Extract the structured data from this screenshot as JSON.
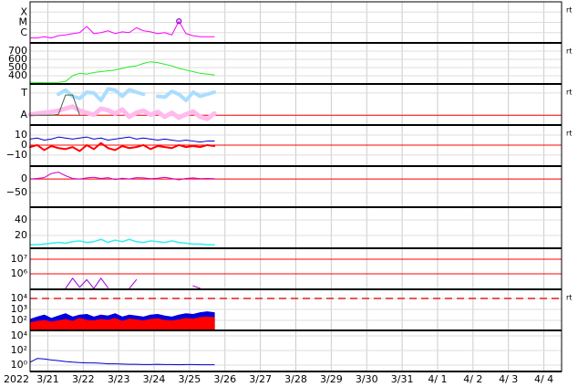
{
  "x_axis": {
    "year": "2022",
    "xlim": [
      0.5,
      15.5
    ],
    "xticks": [
      {
        "value": 1,
        "label": "3/21"
      },
      {
        "value": 2,
        "label": "3/22"
      },
      {
        "value": 3,
        "label": "3/23"
      },
      {
        "value": 4,
        "label": "3/24"
      },
      {
        "value": 5,
        "label": "3/25"
      },
      {
        "value": 6,
        "label": "3/26"
      },
      {
        "value": 7,
        "label": "3/27"
      },
      {
        "value": 8,
        "label": "3/28"
      },
      {
        "value": 9,
        "label": "3/29"
      },
      {
        "value": 10,
        "label": "3/30"
      },
      {
        "value": 11,
        "label": "3/31"
      },
      {
        "value": 12,
        "label": "4/ 1"
      },
      {
        "value": 13,
        "label": "4/ 2"
      },
      {
        "value": 14,
        "label": "4/ 3"
      },
      {
        "value": 15,
        "label": "4/ 4"
      }
    ]
  },
  "chart_data": [
    {
      "type": "line",
      "log": true,
      "ylim": [
        1e-07,
        0.001
      ],
      "side_label": "rt",
      "yticks": [
        {
          "value": 0.0001,
          "label": "X"
        },
        {
          "value": 1e-05,
          "label": "M"
        },
        {
          "value": 1e-06,
          "label": "C"
        }
      ],
      "x": [
        0.5,
        0.7,
        0.9,
        1.1,
        1.3,
        1.5,
        1.7,
        1.9,
        2.1,
        2.3,
        2.5,
        2.7,
        2.9,
        3.1,
        3.3,
        3.5,
        3.7,
        3.9,
        4.1,
        4.3,
        4.5,
        4.7,
        4.9,
        5.1,
        5.3,
        5.5,
        5.7
      ],
      "series": [
        {
          "color": "#ff00ff",
          "values": [
            3e-07,
            3e-07,
            4e-07,
            3e-07,
            5e-07,
            6e-07,
            8e-07,
            1e-06,
            4e-06,
            8e-07,
            1e-06,
            1.5e-06,
            8e-07,
            1.2e-06,
            1e-06,
            3e-06,
            1.5e-06,
            1.2e-06,
            8e-07,
            1e-06,
            6e-07,
            1.3e-05,
            8e-07,
            5e-07,
            4e-07,
            4e-07,
            4e-07
          ]
        }
      ],
      "markers": {
        "color": "#8800cc",
        "x": [
          4.7
        ],
        "values": [
          1.3e-05
        ]
      }
    },
    {
      "type": "line",
      "log": false,
      "ylim": [
        300,
        800
      ],
      "side_label": "rt",
      "yticks": [
        700,
        600,
        500,
        400
      ],
      "x": [
        0.5,
        0.7,
        0.9,
        1.1,
        1.3,
        1.5,
        1.7,
        1.9,
        2.1,
        2.3,
        2.5,
        2.7,
        2.9,
        3.1,
        3.3,
        3.5,
        3.7,
        3.9,
        4.1,
        4.3,
        4.5,
        4.7,
        4.9,
        5.1,
        5.3,
        5.5,
        5.7
      ],
      "series": [
        {
          "color": "#22ee22",
          "values": [
            320,
            318,
            315,
            318,
            320,
            330,
            400,
            430,
            420,
            440,
            450,
            460,
            470,
            490,
            510,
            520,
            550,
            570,
            560,
            540,
            520,
            490,
            470,
            450,
            430,
            420,
            410
          ]
        }
      ]
    },
    {
      "type": "line",
      "log": false,
      "ylim": [
        0,
        10
      ],
      "side_label": "rt",
      "yticks": [
        {
          "value": 7.8,
          "label": "T"
        },
        {
          "value": 2.4,
          "label": "A"
        }
      ],
      "ref_lines": [
        {
          "value": 2.4,
          "color": "#ff0000",
          "dashed": false
        }
      ],
      "x": [
        0.5,
        0.7,
        0.9,
        1.1,
        1.3,
        1.5,
        1.7,
        1.9,
        2.1,
        2.3,
        2.5,
        2.7,
        2.9,
        3.1,
        3.3,
        3.5,
        3.7,
        3.9,
        4.1,
        4.3,
        4.5,
        4.7,
        4.9,
        5.1,
        5.3,
        5.5,
        5.7
      ],
      "series": [
        {
          "color": "#ffbbee",
          "width": 5,
          "values": [
            2.5,
            2.8,
            3,
            3.2,
            3.5,
            4,
            4.5,
            3.5,
            3,
            2.5,
            4,
            3.6,
            2.8,
            3.8,
            2,
            3,
            3.5,
            2.5,
            3.2,
            2,
            3,
            1.8,
            2.6,
            3.3,
            2,
            1.5,
            2.8
          ]
        },
        {
          "color": "#aaddff",
          "width": 4,
          "values": [
            null,
            null,
            null,
            null,
            7.5,
            8.5,
            7,
            6.5,
            8,
            7.8,
            6,
            8.8,
            8.5,
            7,
            8.6,
            8,
            7.5,
            null,
            7,
            6.8,
            8.2,
            7.5,
            6,
            8,
            7,
            7.5,
            8
          ]
        },
        {
          "color": "#446644",
          "width": 1,
          "values": [
            2.4,
            2.4,
            2.4,
            2.4,
            2.6,
            7.3,
            7.3,
            2.4,
            null,
            null,
            null,
            null,
            null,
            null,
            null,
            null,
            null,
            null,
            null,
            null,
            null,
            null,
            null,
            null,
            null,
            null,
            null
          ]
        }
      ]
    },
    {
      "type": "line",
      "log": false,
      "ylim": [
        -21,
        20
      ],
      "side_label": "rt",
      "yticks": [
        10,
        0,
        {
          "value": -10,
          "label": "−10"
        }
      ],
      "ref_lines": [
        {
          "value": 0,
          "color": "#ff0000",
          "dashed": false
        }
      ],
      "x": [
        0.5,
        0.7,
        0.9,
        1.1,
        1.3,
        1.5,
        1.7,
        1.9,
        2.1,
        2.3,
        2.5,
        2.7,
        2.9,
        3.1,
        3.3,
        3.5,
        3.7,
        3.9,
        4.1,
        4.3,
        4.5,
        4.7,
        4.9,
        5.1,
        5.3,
        5.5,
        5.7
      ],
      "series": [
        {
          "color": "#0000cc",
          "width": 1,
          "values": [
            6,
            7,
            5,
            6,
            8,
            7,
            6,
            7,
            8,
            6,
            7,
            5,
            6,
            7,
            8,
            6,
            7,
            6,
            5,
            6,
            5,
            4,
            5,
            4,
            3,
            4,
            4
          ]
        },
        {
          "color": "#ff0000",
          "width": 2,
          "values": [
            -2,
            0,
            -5,
            -1,
            -3,
            -4,
            -2,
            -6,
            0,
            -4,
            2,
            -3,
            -5,
            -1,
            -3,
            -2,
            0,
            -4,
            -1,
            -2,
            -3,
            0,
            -2,
            -1,
            -2,
            0,
            -1
          ]
        }
      ]
    },
    {
      "type": "line",
      "log": false,
      "ylim": [
        -103,
        47
      ],
      "yticks": [
        0,
        {
          "value": -50,
          "label": "−50"
        }
      ],
      "ref_lines": [
        {
          "value": 0,
          "color": "#ff0000",
          "dashed": false
        }
      ],
      "x": [
        0.5,
        0.7,
        0.9,
        1.1,
        1.3,
        1.5,
        1.7,
        1.9,
        2.1,
        2.3,
        2.5,
        2.7,
        2.9,
        3.1,
        3.3,
        3.5,
        3.7,
        3.9,
        4.1,
        4.3,
        4.5,
        4.7,
        4.9,
        5.1,
        5.3,
        5.5,
        5.7
      ],
      "series": [
        {
          "color": "#cc00cc",
          "width": 1,
          "values": [
            0,
            2,
            5,
            20,
            25,
            12,
            2,
            0,
            4,
            6,
            2,
            5,
            -2,
            3,
            0,
            5,
            4,
            1,
            3,
            6,
            2,
            -3,
            2,
            4,
            1,
            2,
            1
          ]
        }
      ]
    },
    {
      "type": "line",
      "log": false,
      "ylim": [
        3.5,
        56.5
      ],
      "yticks": [
        40,
        20
      ],
      "x": [
        0.5,
        0.7,
        0.9,
        1.1,
        1.3,
        1.5,
        1.7,
        1.9,
        2.1,
        2.3,
        2.5,
        2.7,
        2.9,
        3.1,
        3.3,
        3.5,
        3.7,
        3.9,
        4.1,
        4.3,
        4.5,
        4.7,
        4.9,
        5.1,
        5.3,
        5.5,
        5.7
      ],
      "series": [
        {
          "color": "#33eeee",
          "width": 1.5,
          "values": [
            8,
            8,
            9,
            10,
            11,
            10,
            12,
            13,
            11,
            12,
            15,
            11,
            14,
            12,
            15,
            12,
            11,
            13,
            12,
            11,
            13,
            11,
            10,
            9,
            9,
            8,
            8
          ]
        }
      ]
    },
    {
      "type": "line",
      "log": true,
      "ylim": [
        87000,
        56000000
      ],
      "yticks": [
        {
          "value": 10000000,
          "label": "10⁷"
        },
        {
          "value": 1000000,
          "label": "10⁶"
        }
      ],
      "ref_lines": [
        {
          "value": 10000000,
          "color": "#ff0000",
          "dashed": false
        },
        {
          "value": 1000000,
          "color": "#ff0000",
          "dashed": false
        }
      ],
      "x": [
        0.5,
        0.7,
        0.9,
        1.1,
        1.3,
        1.5,
        1.7,
        1.9,
        2.1,
        2.3,
        2.5,
        2.7,
        2.9,
        3.1,
        3.3,
        3.5,
        3.7,
        3.9,
        4.1,
        4.3,
        4.5,
        4.7,
        4.9,
        5.1,
        5.3,
        5.5,
        5.7
      ],
      "series": [
        {
          "color": "#9900cc",
          "width": 1,
          "values": [
            null,
            null,
            null,
            null,
            null,
            100000,
            500000,
            120000,
            400000,
            100000,
            500000,
            110000,
            null,
            null,
            100000,
            400000,
            null,
            null,
            null,
            null,
            null,
            null,
            null,
            150000,
            100000,
            null,
            null
          ]
        }
      ]
    },
    {
      "type": "area",
      "log": true,
      "ylim": [
        12,
        68000
      ],
      "side_label": "rt",
      "yticks": [
        {
          "value": 10000,
          "label": "10⁴"
        },
        {
          "value": 1000,
          "label": "10³"
        },
        {
          "value": 100,
          "label": "10²"
        }
      ],
      "ref_lines": [
        {
          "value": 10000,
          "color": "#dd2222",
          "dashed": true
        }
      ],
      "x": [
        0.5,
        0.7,
        0.9,
        1.1,
        1.3,
        1.5,
        1.7,
        1.9,
        2.1,
        2.3,
        2.5,
        2.7,
        2.9,
        3.1,
        3.3,
        3.5,
        3.7,
        3.9,
        4.1,
        4.3,
        4.5,
        4.7,
        4.9,
        5.1,
        5.3,
        5.5,
        5.7
      ],
      "series": [
        {
          "color": "#0000dd",
          "values": [
            120,
            200,
            300,
            150,
            250,
            400,
            200,
            300,
            350,
            200,
            300,
            250,
            400,
            200,
            300,
            250,
            200,
            300,
            350,
            250,
            200,
            300,
            400,
            350,
            500,
            600,
            500
          ]
        },
        {
          "color": "#ff0000",
          "values": [
            60,
            80,
            100,
            70,
            90,
            120,
            80,
            150,
            100,
            90,
            120,
            100,
            150,
            80,
            130,
            110,
            90,
            120,
            140,
            100,
            90,
            110,
            150,
            130,
            180,
            200,
            180
          ]
        }
      ]
    },
    {
      "type": "line",
      "log": true,
      "ylim": [
        0.133,
        56000
      ],
      "yticks": [
        {
          "value": 10000,
          "label": "10⁴"
        },
        {
          "value": 100,
          "label": "10²"
        },
        {
          "value": 1,
          "label": "10⁰"
        }
      ],
      "x": [
        0.5,
        0.7,
        0.9,
        1.1,
        1.3,
        1.5,
        1.7,
        1.9,
        2.1,
        2.3,
        2.5,
        2.7,
        2.9,
        3.1,
        3.3,
        3.5,
        3.7,
        3.9,
        4.1,
        4.3,
        4.5,
        4.7,
        4.9,
        5.1,
        5.3,
        5.5,
        5.7
      ],
      "series": [
        {
          "color": "#0000cc",
          "width": 1,
          "values": [
            2.5,
            8,
            7,
            5,
            4,
            3,
            2.5,
            2.2,
            2,
            2,
            1.8,
            1.5,
            1.5,
            1.4,
            1.3,
            1.3,
            1.2,
            1.2,
            1.3,
            1.2,
            1.2,
            1.1,
            1.2,
            1.2,
            1.1,
            1.1,
            1.1
          ]
        }
      ]
    }
  ]
}
